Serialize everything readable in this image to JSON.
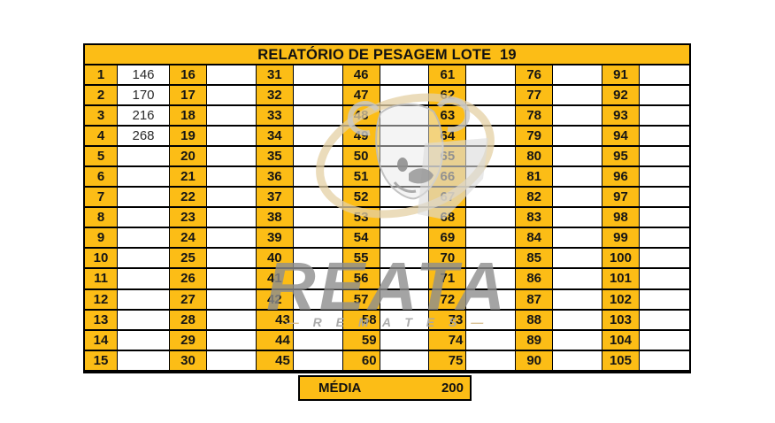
{
  "report": {
    "title": "RELATÓRIO DE PESAGEM LOTE  19",
    "media_label": "MÉDIA",
    "media_value": "200",
    "columns": [
      {
        "numbers": [
          1,
          2,
          3,
          4,
          5,
          6,
          7,
          8,
          9,
          10,
          11,
          12,
          13,
          14,
          15
        ],
        "values": [
          "146",
          "170",
          "216",
          "268",
          "",
          "",
          "",
          "",
          "",
          "",
          "",
          "",
          "",
          "",
          ""
        ]
      },
      {
        "numbers": [
          16,
          17,
          18,
          19,
          20,
          21,
          22,
          23,
          24,
          25,
          26,
          27,
          28,
          29,
          30
        ],
        "values": [
          "",
          "",
          "",
          "",
          "",
          "",
          "",
          "",
          "",
          "",
          "",
          "",
          "",
          "",
          ""
        ]
      },
      {
        "numbers": [
          31,
          32,
          33,
          34,
          35,
          36,
          37,
          38,
          39,
          40,
          41,
          42,
          43,
          44,
          45
        ],
        "values": [
          "",
          "",
          "",
          "",
          "",
          "",
          "",
          "",
          "",
          "",
          "",
          "",
          "",
          "",
          ""
        ]
      },
      {
        "numbers": [
          46,
          47,
          48,
          49,
          50,
          51,
          52,
          53,
          54,
          55,
          56,
          57,
          58,
          59,
          60
        ],
        "values": [
          "",
          "",
          "",
          "",
          "",
          "",
          "",
          "",
          "",
          "",
          "",
          "",
          "",
          "",
          ""
        ]
      },
      {
        "numbers": [
          61,
          62,
          63,
          64,
          65,
          66,
          67,
          68,
          69,
          70,
          71,
          72,
          73,
          74,
          75
        ],
        "values": [
          "",
          "",
          "",
          "",
          "",
          "",
          "",
          "",
          "",
          "",
          "",
          "",
          "",
          "",
          ""
        ]
      },
      {
        "numbers": [
          76,
          77,
          78,
          79,
          80,
          81,
          82,
          83,
          84,
          85,
          86,
          87,
          88,
          89,
          90
        ],
        "values": [
          "",
          "",
          "",
          "",
          "",
          "",
          "",
          "",
          "",
          "",
          "",
          "",
          "",
          "",
          ""
        ]
      },
      {
        "numbers": [
          91,
          92,
          93,
          94,
          95,
          96,
          97,
          98,
          99,
          100,
          101,
          102,
          103,
          104,
          105
        ],
        "values": [
          "",
          "",
          "",
          "",
          "",
          "",
          "",
          "",
          "",
          "",
          "",
          "",
          "",
          "",
          ""
        ]
      }
    ],
    "right_aligned_numbers": [
      43,
      44,
      45,
      58,
      59,
      60,
      73,
      74,
      75
    ]
  },
  "watermark": {
    "brand": "REATA",
    "sub_letters": "R E M A T E S",
    "dash_left": "—",
    "dash_right": "—"
  },
  "colors": {
    "cell_orange": "#fcbd16",
    "border_black": "#000000",
    "number_text": "#151515",
    "value_text": "#2a2a2a",
    "watermark_gray": "#8e8e8e",
    "watermark_tan": "#e4d0a4"
  }
}
